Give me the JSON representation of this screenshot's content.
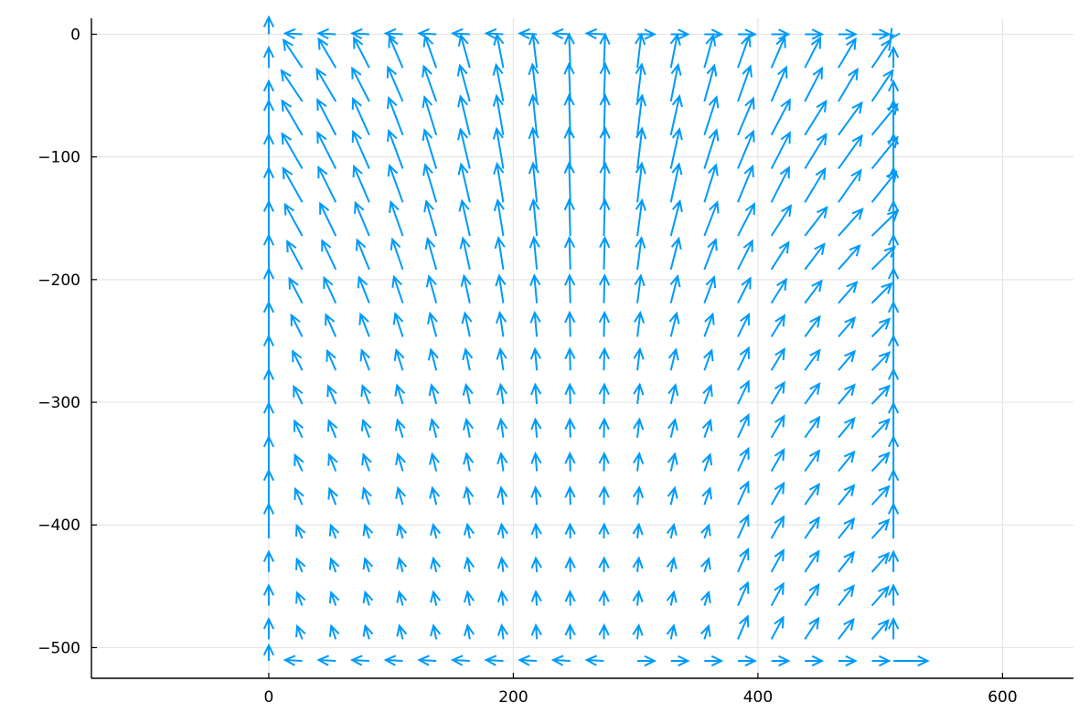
{
  "chart_data": {
    "type": "quiver",
    "title": "",
    "xlabel": "",
    "ylabel": "",
    "xlim": [
      -145,
      658
    ],
    "ylim": [
      -525,
      13
    ],
    "grid": true,
    "legend": false,
    "color": "#009af9",
    "x_ticks": [
      0,
      200,
      400,
      600
    ],
    "x_tick_labels": [
      "0",
      "200",
      "400",
      "600"
    ],
    "y_ticks": [
      0,
      -100,
      -200,
      -300,
      -400,
      -500
    ],
    "y_tick_labels": [
      "0",
      "−100",
      "−200",
      "−300",
      "−400",
      "−500"
    ],
    "grid_x": [
      0,
      27.4,
      54.8,
      82.2,
      109.6,
      137,
      164.4,
      191.8,
      219.2,
      246.6,
      274,
      301.4,
      328.8,
      356.2,
      383.6,
      411,
      438.4,
      465.8,
      493.2,
      510.8
    ],
    "grid_y": [
      0,
      -27.4,
      -54.8,
      -82.2,
      -109.6,
      -137,
      -164.4,
      -191.8,
      -219.2,
      -246.6,
      -274,
      -301.4,
      -328.8,
      -356.2,
      -383.6,
      -411,
      -438.4,
      -465.8,
      -493.2,
      -510.8
    ],
    "velocity_note": "vector field sampled on a 20x20 grid; arrows show direction of the flow (U,V)"
  }
}
